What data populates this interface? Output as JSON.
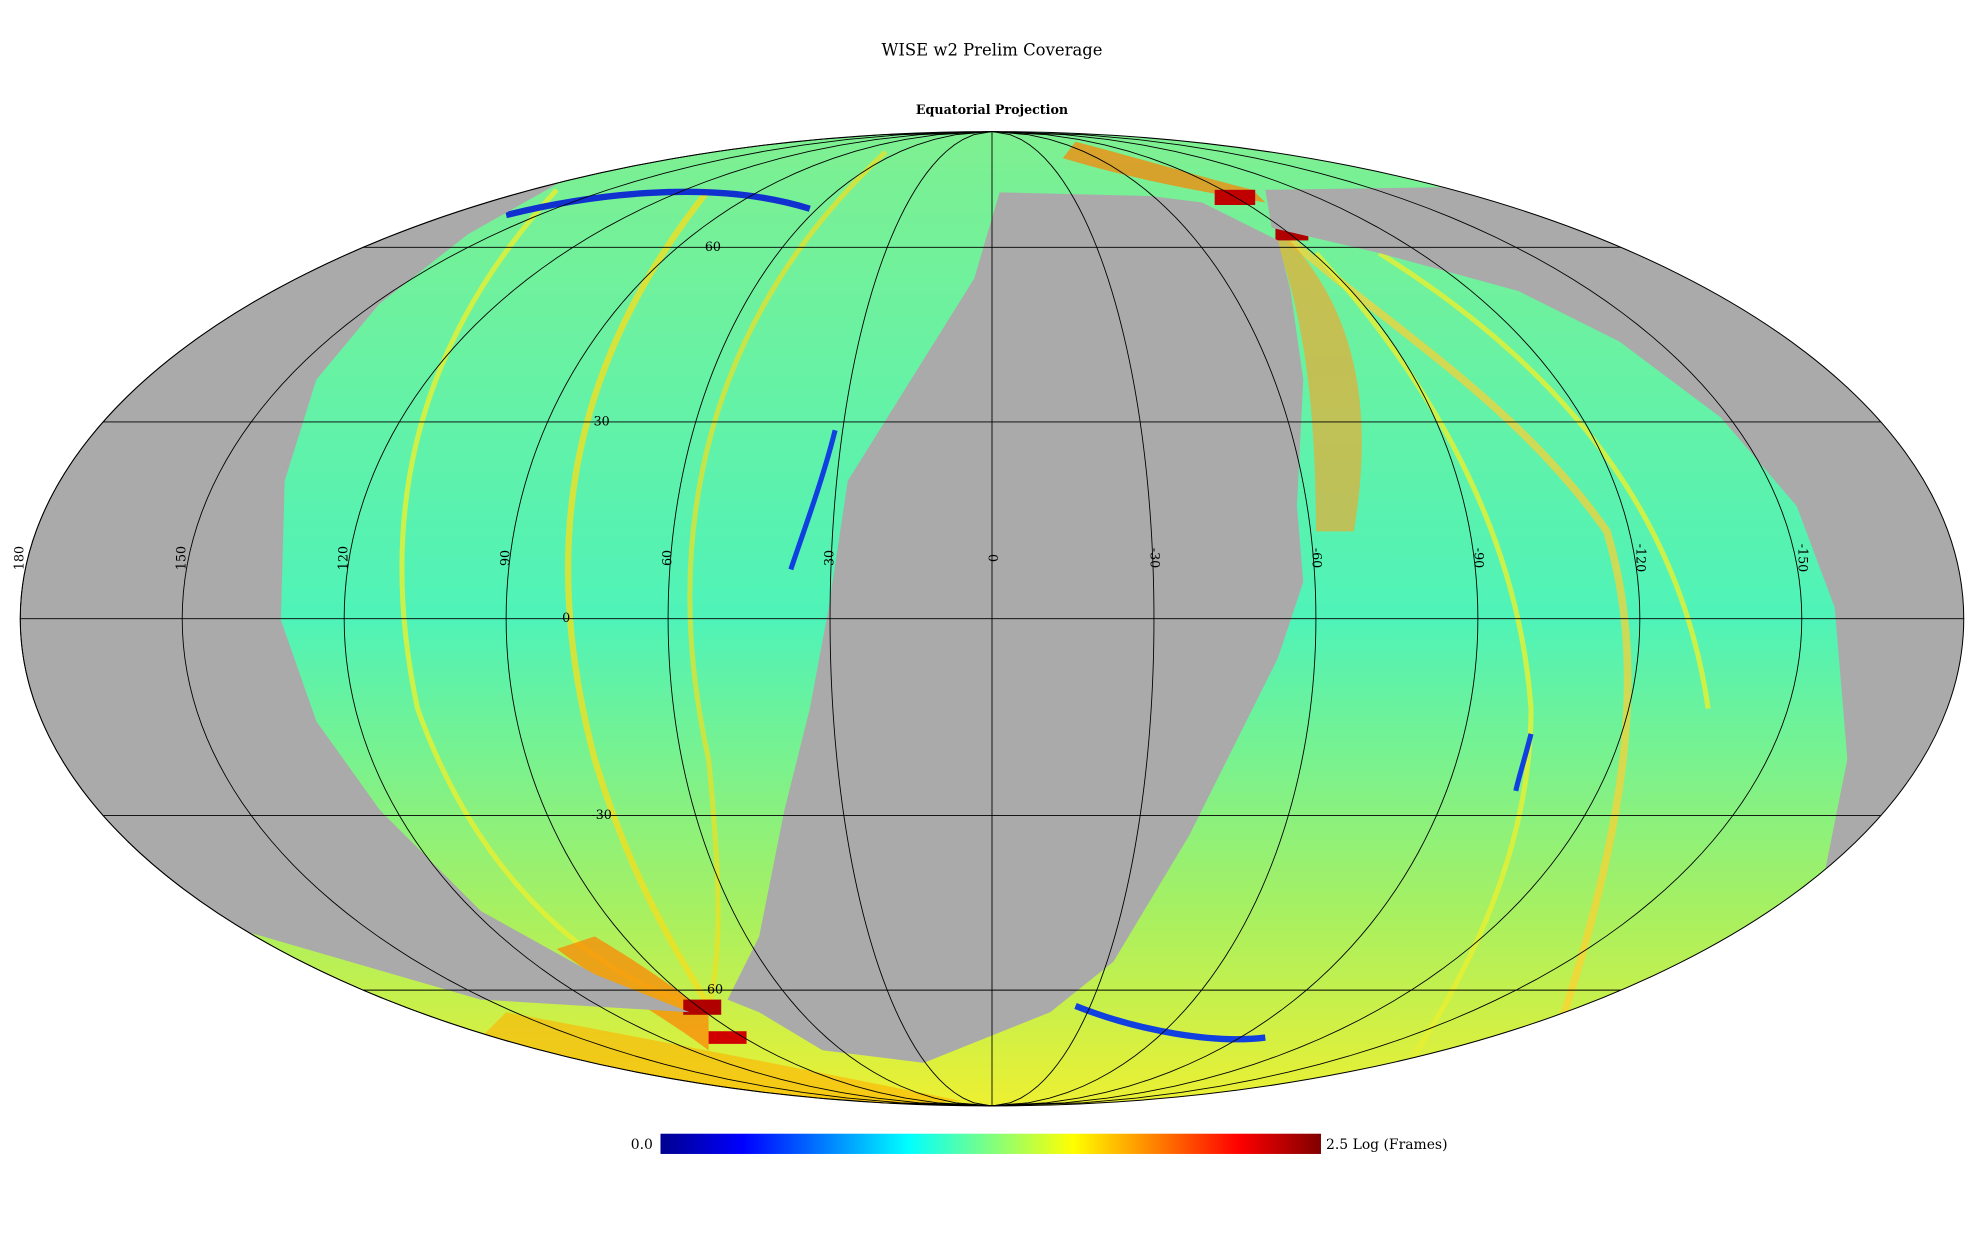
{
  "title": "WISE w2 Prelim Coverage",
  "subtitle": "Equatorial Projection",
  "graticule": {
    "longitude_labels": [
      180,
      150,
      120,
      90,
      60,
      30,
      0,
      -30,
      -60,
      -90,
      -120,
      -150
    ],
    "latitude_labels": [
      60,
      30,
      0,
      -30,
      -60
    ]
  },
  "colorbar": {
    "min": {
      "value": 0,
      "label": "0.0"
    },
    "max": 2.5,
    "units": "Log (Frames)"
  }
}
